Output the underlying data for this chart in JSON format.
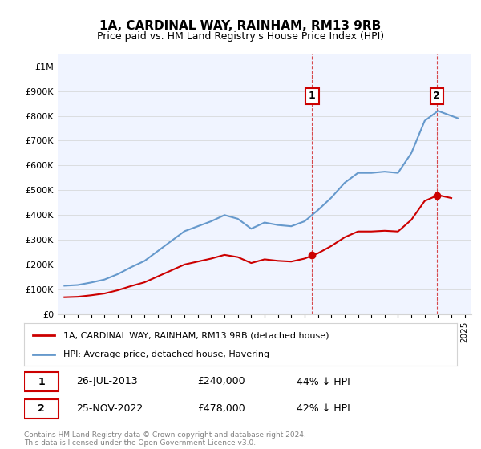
{
  "title": "1A, CARDINAL WAY, RAINHAM, RM13 9RB",
  "subtitle": "Price paid vs. HM Land Registry's House Price Index (HPI)",
  "xlabel": "",
  "ylabel": "",
  "ylim": [
    0,
    1050000
  ],
  "yticks": [
    0,
    100000,
    200000,
    300000,
    400000,
    500000,
    600000,
    700000,
    800000,
    900000,
    1000000
  ],
  "ytick_labels": [
    "£0",
    "£100K",
    "£200K",
    "£300K",
    "£400K",
    "£500K",
    "£600K",
    "£700K",
    "£800K",
    "£900K",
    "£1M"
  ],
  "hpi_color": "#6699cc",
  "price_color": "#cc0000",
  "sale1_date": 2013.57,
  "sale1_price": 240000,
  "sale1_label": "1",
  "sale2_date": 2022.9,
  "sale2_price": 478000,
  "sale2_label": "2",
  "legend_line1": "1A, CARDINAL WAY, RAINHAM, RM13 9RB (detached house)",
  "legend_line2": "HPI: Average price, detached house, Havering",
  "table_row1": "1    26-JUL-2013    £240,000    44% ↓ HPI",
  "table_row2": "2    25-NOV-2022    £478,000    42% ↓ HPI",
  "footer": "Contains HM Land Registry data © Crown copyright and database right 2024.\nThis data is licensed under the Open Government Licence v3.0.",
  "background_color": "#f0f4ff",
  "plot_bg": "#f0f4ff"
}
